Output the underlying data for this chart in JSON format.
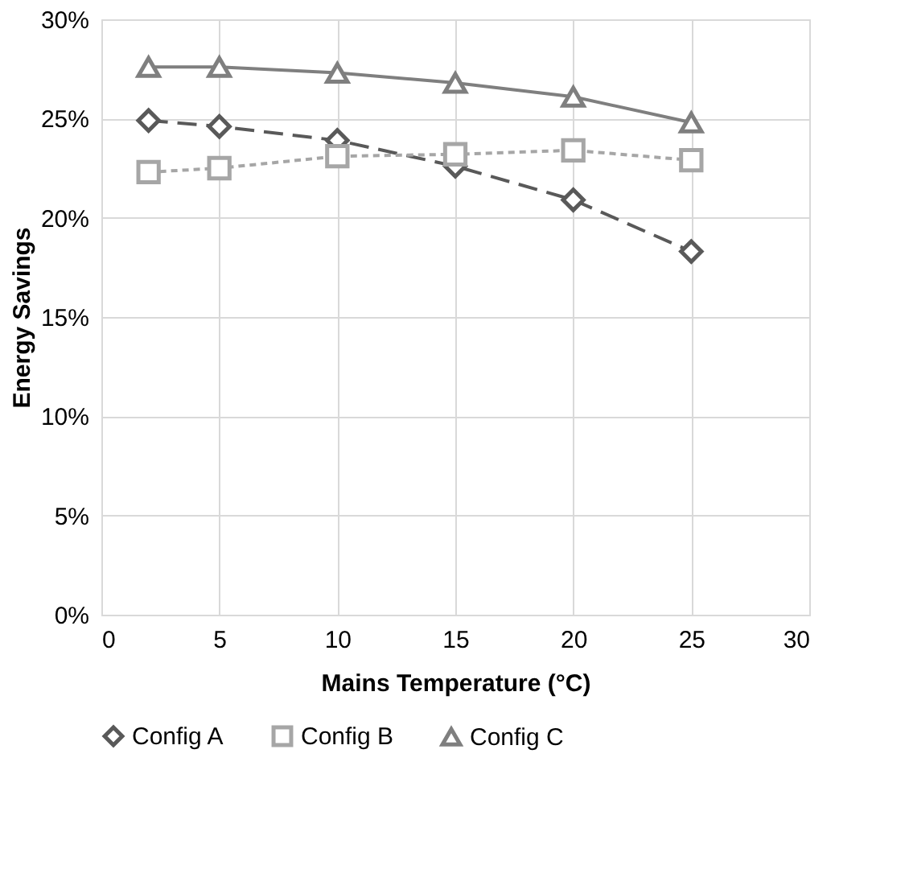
{
  "chart_data": {
    "type": "line",
    "xlabel": "Mains Temperature (°C)",
    "ylabel": "Energy Savings",
    "x": [
      2,
      5,
      10,
      15,
      20,
      25
    ],
    "series": [
      {
        "name": "Config A",
        "color": "#595959",
        "marker": "diamond",
        "line_style": "dashed",
        "values": [
          24.9,
          24.6,
          23.9,
          22.6,
          20.9,
          18.3
        ]
      },
      {
        "name": "Config B",
        "color": "#a6a6a6",
        "marker": "square",
        "line_style": "dotted",
        "values": [
          22.3,
          22.5,
          23.1,
          23.2,
          23.4,
          22.9
        ]
      },
      {
        "name": "Config C",
        "color": "#7f7f7f",
        "marker": "triangle",
        "line_style": "solid",
        "values": [
          27.6,
          27.6,
          27.3,
          26.8,
          26.1,
          24.8
        ]
      }
    ],
    "xlim": [
      0,
      30
    ],
    "xticks": [
      0,
      5,
      10,
      15,
      20,
      25,
      30
    ],
    "ylim": [
      0,
      30
    ],
    "yticks": [
      {
        "value": 0,
        "label": "0%"
      },
      {
        "value": 5,
        "label": "5%"
      },
      {
        "value": 10,
        "label": "10%"
      },
      {
        "value": 15,
        "label": "15%"
      },
      {
        "value": 20,
        "label": "20%"
      },
      {
        "value": 25,
        "label": "25%"
      },
      {
        "value": 30,
        "label": "30%"
      }
    ],
    "grid": true,
    "legend": "bottom"
  }
}
